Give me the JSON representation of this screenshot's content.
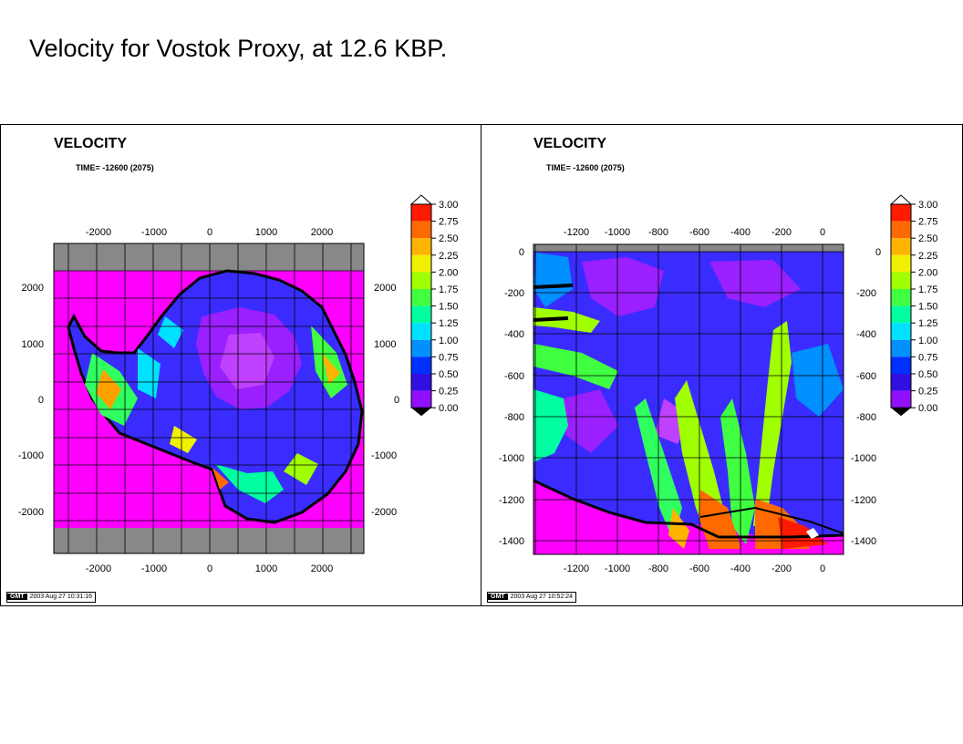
{
  "slide": {
    "title": "Velocity for Vostok Proxy, at 12.6 KBP."
  },
  "colors": {
    "background": "#ffffff",
    "outside_data": "#ff00ff",
    "frame_gray": "#888888",
    "coastline": "#000000"
  },
  "colorbar": {
    "levels": [
      "3.00",
      "2.75",
      "2.50",
      "2.25",
      "2.00",
      "1.75",
      "1.50",
      "1.25",
      "1.00",
      "0.75",
      "0.50",
      "0.25",
      "0.00"
    ],
    "colors": [
      "#ff1a00",
      "#ff6a00",
      "#ffb400",
      "#f0f000",
      "#a0ff00",
      "#40ff40",
      "#00ffa0",
      "#00e0ff",
      "#0090ff",
      "#0030ff",
      "#3010e0",
      "#9010ff",
      "#ff00ff"
    ]
  },
  "panels": [
    {
      "title": "VELOCITY",
      "time": "TIME= -12600 (2075)",
      "stamp_label": "GMT",
      "stamp": "2003 Aug 27 10:31:16",
      "x_ticks": [
        "-2000",
        "-1000",
        "0",
        "1000",
        "2000"
      ],
      "y_ticks": [
        "2000",
        "1000",
        "0",
        "-1000",
        "-2000"
      ]
    },
    {
      "title": "VELOCITY",
      "time": "TIME= -12600 (2075)",
      "stamp_label": "GMT",
      "stamp": "2003 Aug 27 10:52:24",
      "x_ticks": [
        "-1200",
        "-1000",
        "-800",
        "-600",
        "-400",
        "-200",
        "0"
      ],
      "y_ticks": [
        "0",
        "-200",
        "-400",
        "-600",
        "-800",
        "-1000",
        "-1200",
        "-1400"
      ]
    }
  ]
}
